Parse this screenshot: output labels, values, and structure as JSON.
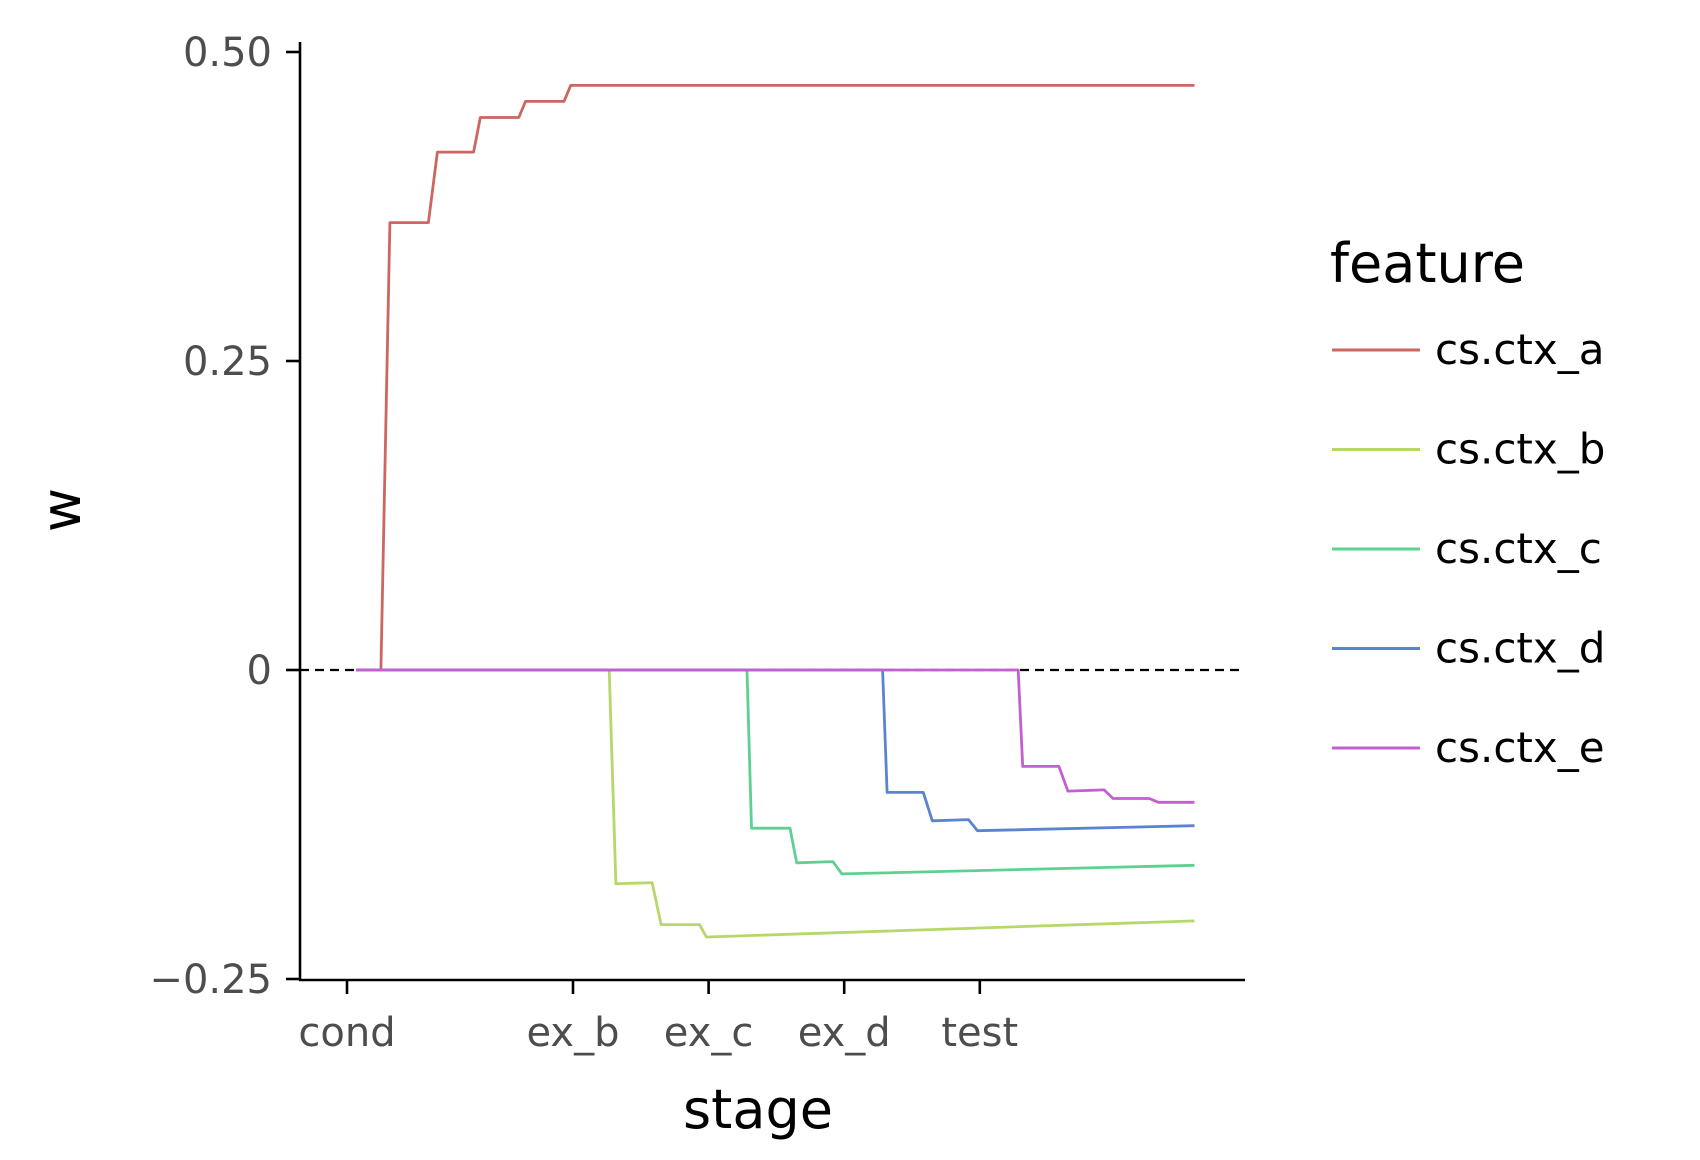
{
  "chart_data": {
    "type": "line",
    "xlabel": "stage",
    "ylabel": "w",
    "ylim": [
      -0.25,
      0.5
    ],
    "xlim": [
      -1,
      19
    ],
    "grid": false,
    "legend_position": "right",
    "legend_title": "feature",
    "reference_line": {
      "y": 0,
      "style": "dashed"
    },
    "x_ticks": [
      {
        "label": "cond",
        "x": 0
      },
      {
        "label": "ex_b",
        "x": 5
      },
      {
        "label": "ex_c",
        "x": 8
      },
      {
        "label": "ex_d",
        "x": 11
      },
      {
        "label": "test",
        "x": 14
      }
    ],
    "y_ticks": [
      {
        "label": "0.50",
        "value": 0.5
      },
      {
        "label": "0.25",
        "value": 0.25
      },
      {
        "label": "0",
        "value": 0
      },
      {
        "label": "−0.25",
        "value": -0.25
      }
    ],
    "series": [
      {
        "name": "cs.ctx_a",
        "color": "#cc6660",
        "points": [
          [
            0.2,
            0
          ],
          [
            0.75,
            0
          ],
          [
            0.95,
            0.362
          ],
          [
            1.8,
            0.362
          ],
          [
            2,
            0.419
          ],
          [
            2.8,
            0.419
          ],
          [
            2.95,
            0.447
          ],
          [
            3.8,
            0.447
          ],
          [
            3.95,
            0.46
          ],
          [
            4.8,
            0.46
          ],
          [
            4.95,
            0.473
          ],
          [
            18.75,
            0.473
          ]
        ]
      },
      {
        "name": "cs.ctx_b",
        "color": "#b6d86a",
        "points": [
          [
            0.2,
            0
          ],
          [
            5.8,
            0
          ],
          [
            5.95,
            -0.173
          ],
          [
            6.75,
            -0.172
          ],
          [
            6.95,
            -0.206
          ],
          [
            7.8,
            -0.206
          ],
          [
            7.95,
            -0.216
          ],
          [
            18.75,
            -0.203
          ]
        ]
      },
      {
        "name": "cs.ctx_c",
        "color": "#5ed191",
        "points": [
          [
            0.2,
            0
          ],
          [
            8.85,
            0
          ],
          [
            8.95,
            -0.128
          ],
          [
            9.8,
            -0.128
          ],
          [
            9.95,
            -0.156
          ],
          [
            10.75,
            -0.155
          ],
          [
            10.95,
            -0.165
          ],
          [
            18.75,
            -0.158
          ]
        ]
      },
      {
        "name": "cs.ctx_d",
        "color": "#5b84d0",
        "points": [
          [
            0.2,
            0
          ],
          [
            11.85,
            0
          ],
          [
            11.95,
            -0.099
          ],
          [
            12.75,
            -0.099
          ],
          [
            12.95,
            -0.122
          ],
          [
            13.75,
            -0.121
          ],
          [
            13.95,
            -0.13
          ],
          [
            18.75,
            -0.126
          ]
        ]
      },
      {
        "name": "cs.ctx_e",
        "color": "#c35fd0",
        "points": [
          [
            0.2,
            0
          ],
          [
            14.85,
            0
          ],
          [
            14.95,
            -0.078
          ],
          [
            15.75,
            -0.078
          ],
          [
            15.95,
            -0.098
          ],
          [
            16.75,
            -0.097
          ],
          [
            16.95,
            -0.104
          ],
          [
            17.75,
            -0.104
          ],
          [
            17.95,
            -0.107
          ],
          [
            18.75,
            -0.107
          ]
        ]
      }
    ]
  }
}
